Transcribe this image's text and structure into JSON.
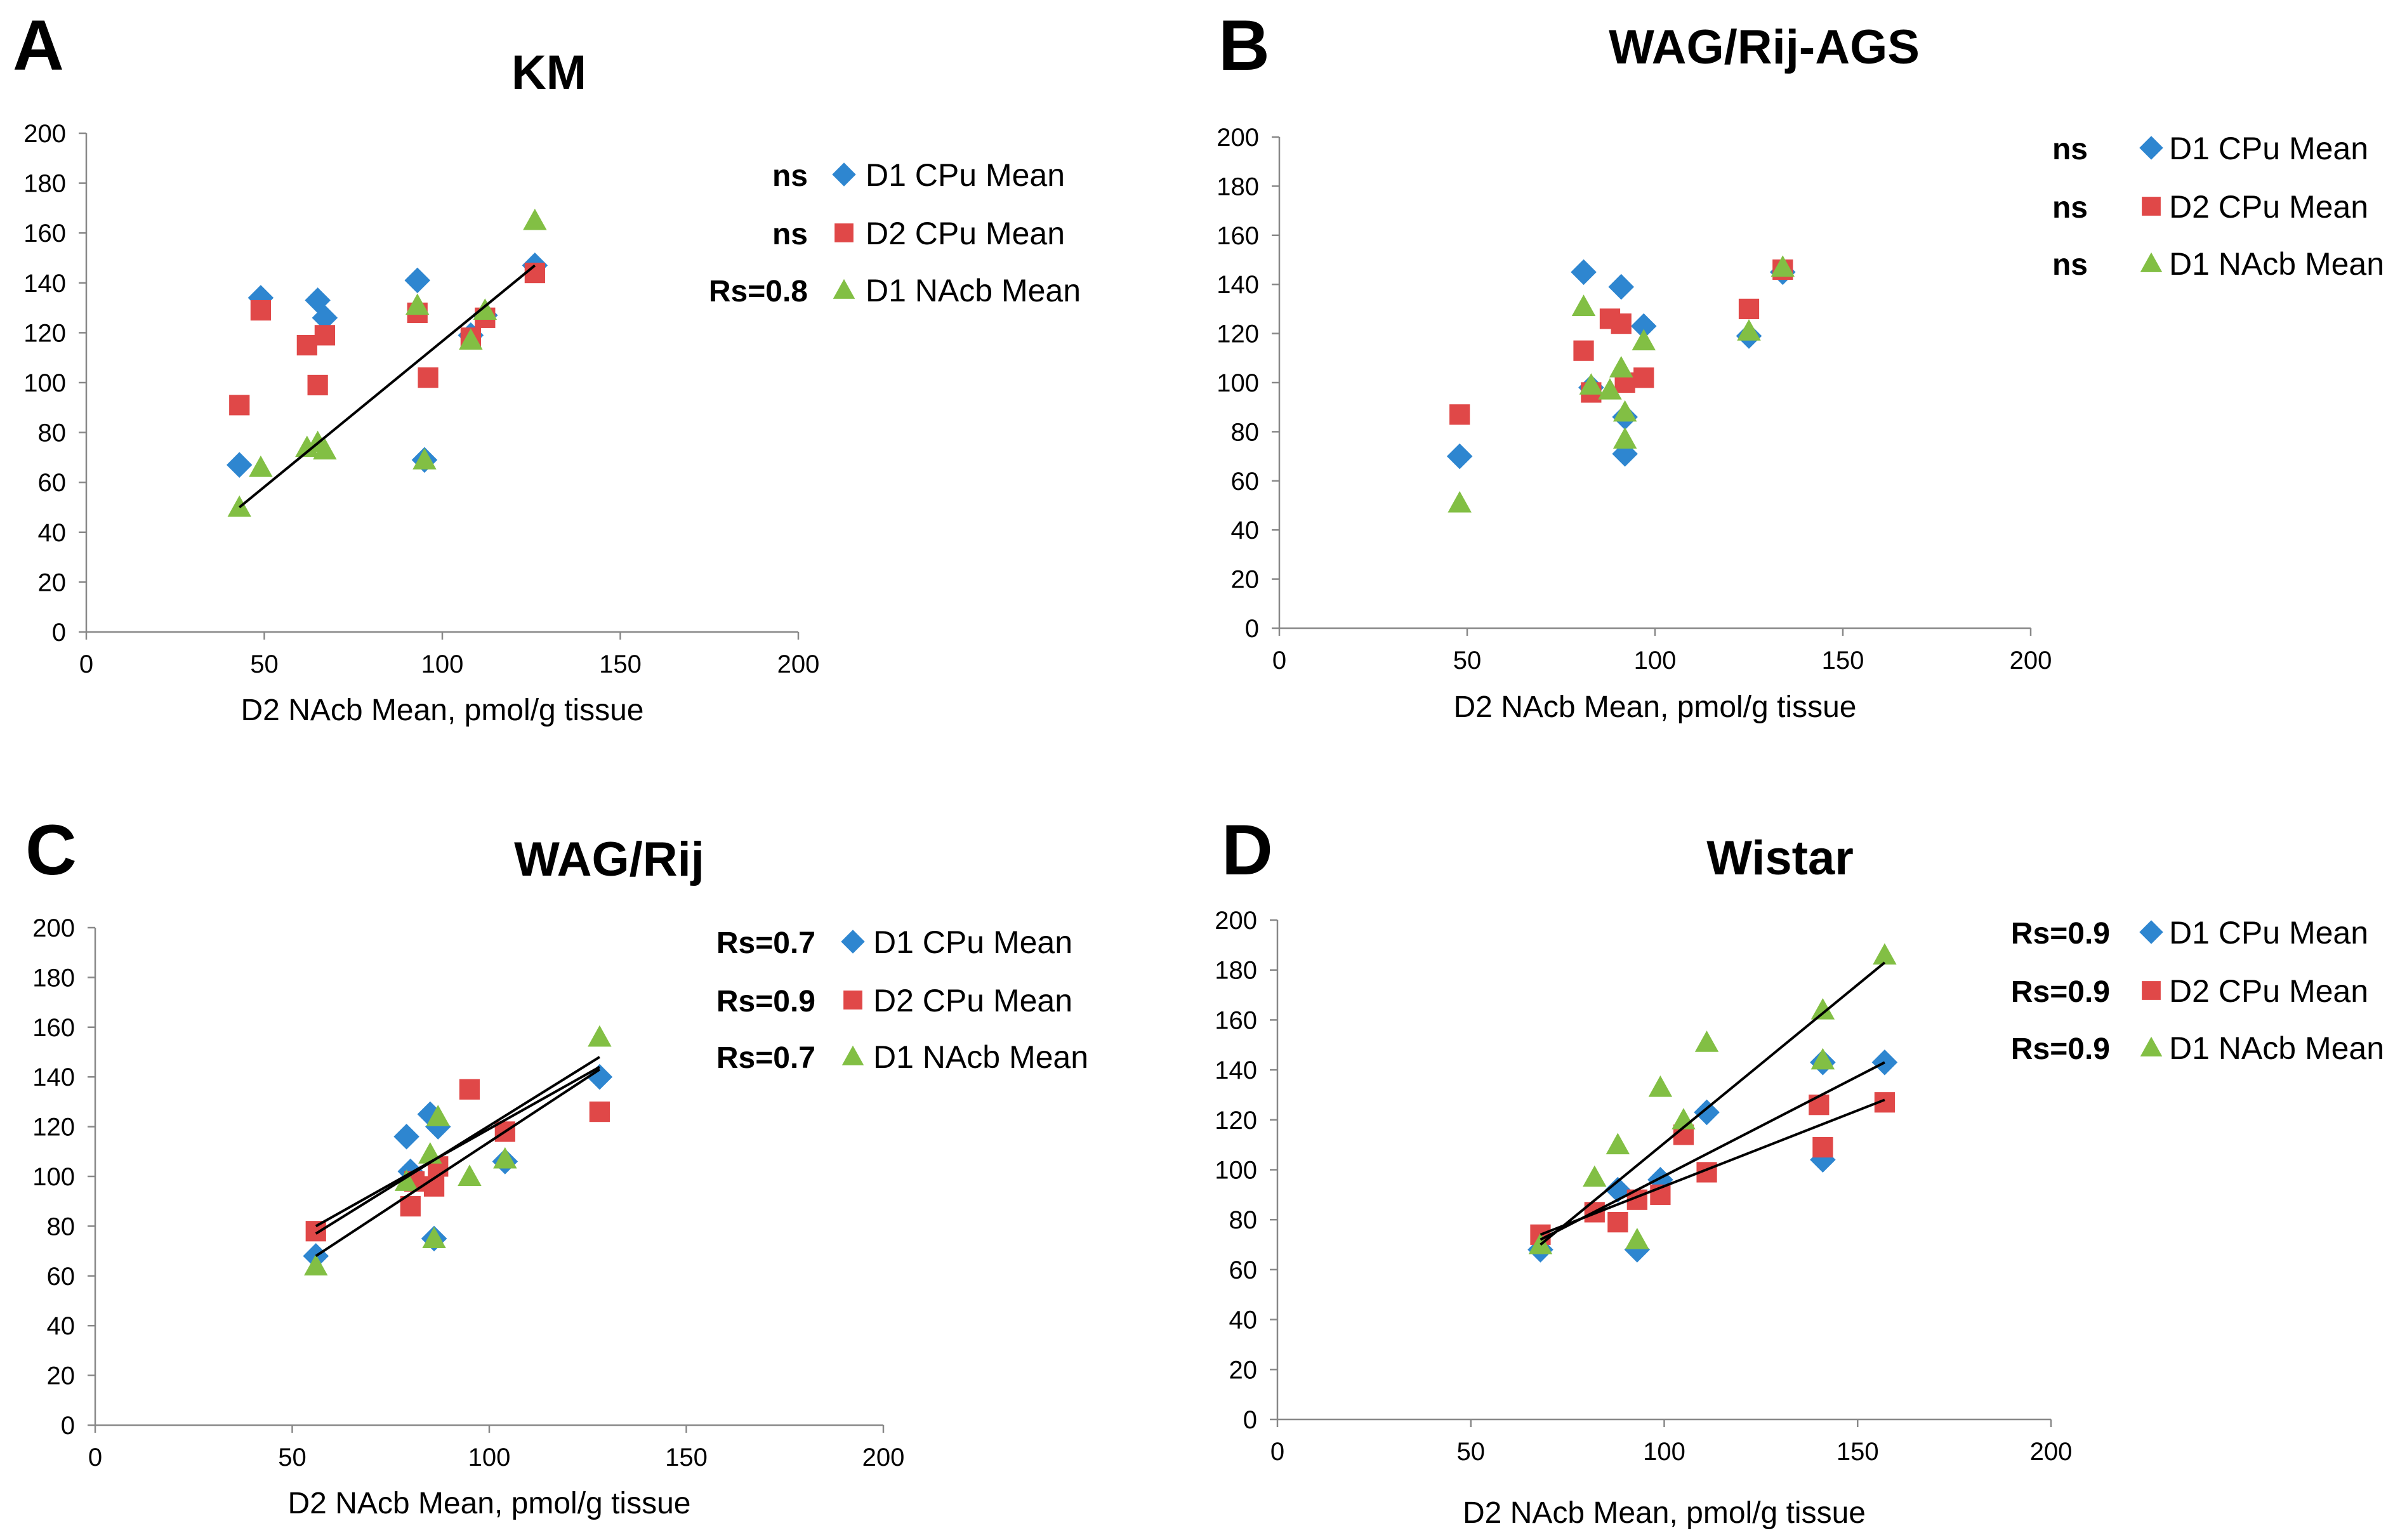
{
  "colors": {
    "d1_cpu": "#2e86d0",
    "d2_cpu": "#e04848",
    "d1_nacb": "#82bf44",
    "fit": "#000000"
  },
  "chart_data": [
    {
      "panel": "A",
      "title": "KM",
      "type": "scatter",
      "xlabel": "D2 NAcb Mean, pmol/g tissue",
      "ylabel": "",
      "xlim": [
        0,
        200
      ],
      "ylim": [
        0,
        200
      ],
      "xticks": [
        "0",
        "50",
        "100",
        "150",
        "200"
      ],
      "yticks": [
        "0",
        "20",
        "40",
        "60",
        "80",
        "100",
        "120",
        "140",
        "160",
        "180",
        "200"
      ],
      "series": [
        {
          "name": "D1 CPu Mean",
          "stat": "ns",
          "marker": "diamond",
          "color": "#2e86d0",
          "x": [
            43,
            49,
            65,
            67,
            93,
            95,
            108,
            112,
            126
          ],
          "y": [
            67,
            134,
            133,
            126,
            141,
            69,
            119,
            127,
            147
          ],
          "fit": null
        },
        {
          "name": "D2 CPu Mean",
          "stat": "ns",
          "marker": "square",
          "color": "#e04848",
          "x": [
            43,
            49,
            62,
            65,
            67,
            93,
            96,
            108,
            112,
            126
          ],
          "y": [
            91,
            129,
            115,
            99,
            119,
            128,
            102,
            118,
            126,
            144
          ],
          "fit": null
        },
        {
          "name": "D1 NAcb Mean",
          "stat": "Rs=0.8",
          "marker": "triangle",
          "color": "#82bf44",
          "x": [
            43,
            49,
            62,
            65,
            67,
            93,
            95,
            108,
            112,
            126
          ],
          "y": [
            50,
            66,
            74,
            76,
            73,
            131,
            69,
            117,
            129,
            165
          ],
          "fit": [
            [
              43,
              50
            ],
            [
              126,
              147
            ]
          ]
        }
      ]
    },
    {
      "panel": "B",
      "title": "WAG/Rij-AGS",
      "type": "scatter",
      "xlabel": "D2 NAcb Mean, pmol/g tissue",
      "ylabel": "",
      "xlim": [
        0,
        200
      ],
      "ylim": [
        0,
        200
      ],
      "xticks": [
        "0",
        "50",
        "100",
        "150",
        "200"
      ],
      "yticks": [
        "0",
        "20",
        "40",
        "60",
        "80",
        "100",
        "120",
        "140",
        "160",
        "180",
        "200"
      ],
      "series": [
        {
          "name": "D1 CPu Mean",
          "stat": "ns",
          "marker": "diamond",
          "color": "#2e86d0",
          "x": [
            48,
            81,
            83,
            91,
            92,
            92,
            97,
            125,
            134
          ],
          "y": [
            70,
            145,
            98,
            139,
            86,
            71,
            123,
            119,
            145
          ],
          "fit": null
        },
        {
          "name": "D2 CPu Mean",
          "stat": "ns",
          "marker": "square",
          "color": "#e04848",
          "x": [
            48,
            81,
            83,
            88,
            91,
            92,
            97,
            125,
            134
          ],
          "y": [
            87,
            113,
            96,
            126,
            124,
            100,
            102,
            130,
            146
          ],
          "fit": null
        },
        {
          "name": "D1 NAcb Mean",
          "stat": "ns",
          "marker": "triangle",
          "color": "#82bf44",
          "x": [
            48,
            81,
            83,
            88,
            91,
            92,
            92,
            97,
            125,
            134
          ],
          "y": [
            51,
            131,
            99,
            97,
            106,
            88,
            77,
            117,
            121,
            147
          ],
          "fit": null
        }
      ]
    },
    {
      "panel": "C",
      "title": "WAG/Rij",
      "type": "scatter",
      "xlabel": "D2 NAcb Mean, pmol/g tissue",
      "ylabel": "",
      "xlim": [
        0,
        200
      ],
      "ylim": [
        0,
        200
      ],
      "xticks": [
        "0",
        "50",
        "100",
        "150",
        "200"
      ],
      "yticks": [
        "0",
        "20",
        "40",
        "60",
        "80",
        "100",
        "120",
        "140",
        "160",
        "180",
        "200"
      ],
      "series": [
        {
          "name": "D1 CPu Mean",
          "stat": "Rs=0.7",
          "marker": "diamond",
          "color": "#2e86d0",
          "x": [
            56,
            79,
            80,
            85,
            86,
            87,
            104,
            128
          ],
          "y": [
            68,
            116,
            102,
            125,
            75,
            120,
            106,
            140
          ],
          "fit": [
            [
              56,
              68
            ],
            [
              128,
              143
            ]
          ]
        },
        {
          "name": "D2 CPu Mean",
          "stat": "Rs=0.9",
          "marker": "square",
          "color": "#e04848",
          "x": [
            56,
            80,
            81,
            86,
            87,
            95,
            104,
            128
          ],
          "y": [
            78,
            88,
            98,
            96,
            104,
            135,
            118,
            126
          ],
          "fit": [
            [
              56,
              80
            ],
            [
              128,
              144
            ]
          ]
        },
        {
          "name": "D1 NAcb Mean",
          "stat": "Rs=0.7",
          "marker": "triangle",
          "color": "#82bf44",
          "x": [
            56,
            79,
            85,
            86,
            87,
            95,
            104,
            128
          ],
          "y": [
            64,
            98,
            109,
            75,
            124,
            100,
            107,
            156
          ],
          "fit": [
            [
              56,
              77
            ],
            [
              128,
              148
            ]
          ]
        }
      ]
    },
    {
      "panel": "D",
      "title": "Wistar",
      "type": "scatter",
      "xlabel": "D2 NAcb Mean, pmol/g tissue",
      "ylabel": "",
      "xlim": [
        0,
        200
      ],
      "ylim": [
        0,
        200
      ],
      "xticks": [
        "0",
        "50",
        "100",
        "150",
        "200"
      ],
      "yticks": [
        "0",
        "20",
        "40",
        "60",
        "80",
        "100",
        "120",
        "140",
        "160",
        "180",
        "200"
      ],
      "series": [
        {
          "name": "D1 CPu Mean",
          "stat": "Rs=0.9",
          "marker": "diamond",
          "color": "#2e86d0",
          "x": [
            68,
            88,
            93,
            99,
            111,
            141,
            141,
            157
          ],
          "y": [
            68,
            92,
            68,
            96,
            123,
            143,
            104,
            143
          ],
          "fit": [
            [
              68,
              72
            ],
            [
              157,
              143
            ]
          ]
        },
        {
          "name": "D2 CPu Mean",
          "stat": "Rs=0.9",
          "marker": "square",
          "color": "#e04848",
          "x": [
            68,
            82,
            88,
            93,
            99,
            105,
            111,
            140,
            141,
            157
          ],
          "y": [
            74,
            83,
            79,
            88,
            90,
            114,
            99,
            126,
            109,
            127
          ],
          "fit": [
            [
              68,
              74
            ],
            [
              157,
              128
            ]
          ]
        },
        {
          "name": "D1 NAcb Mean",
          "stat": "Rs=0.9",
          "marker": "triangle",
          "color": "#82bf44",
          "x": [
            68,
            82,
            88,
            93,
            99,
            105,
            111,
            141,
            141,
            157
          ],
          "y": [
            70,
            97,
            110,
            72,
            133,
            120,
            151,
            164,
            144,
            186
          ],
          "fit": [
            [
              68,
              70
            ],
            [
              157,
              183
            ]
          ]
        }
      ]
    }
  ]
}
